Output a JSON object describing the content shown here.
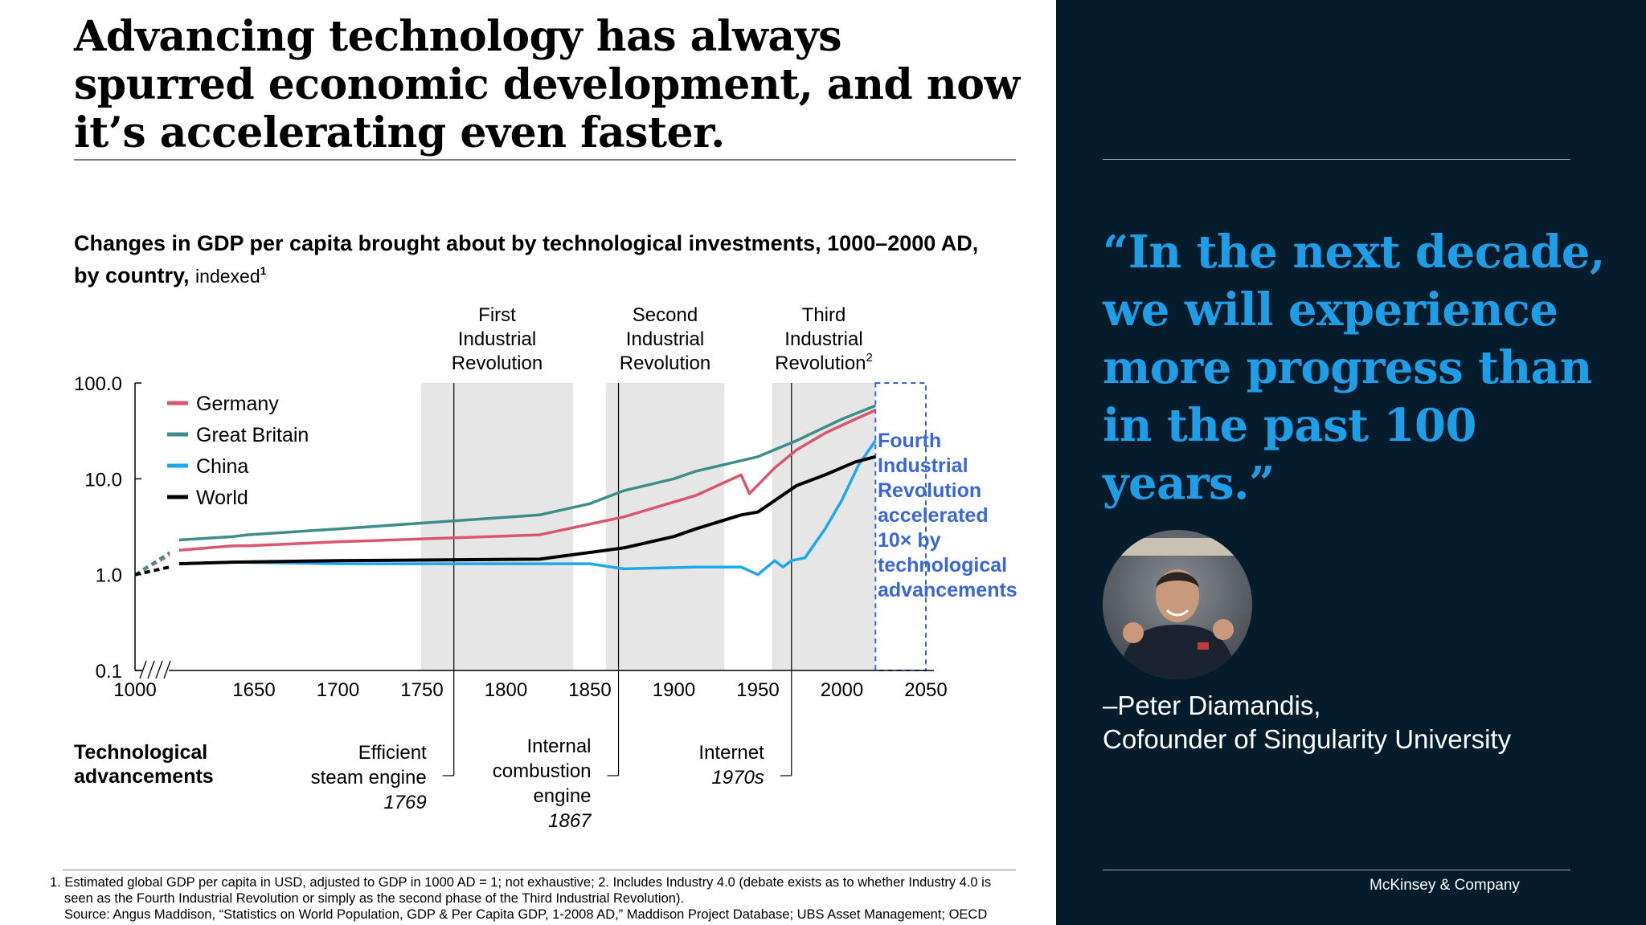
{
  "slide": {
    "headline": "Advancing technology has always spurred economic development, and now it’s accelerating even faster.",
    "chart_title": "Changes in GDP per capita brought about by technological investments, 1000–2000 AD, by country,",
    "chart_title_unit": "indexed",
    "chart_title_sup": "1"
  },
  "chart_data": {
    "type": "line",
    "title": "Changes in GDP per capita brought about by technological investments, 1000–2000 AD, by country, indexed",
    "y_scale": "log",
    "ylim": [
      0.1,
      100.0
    ],
    "y_ticks": [
      "100.0",
      "10.0",
      "1.0",
      "0.1"
    ],
    "x_ticks": [
      "1000",
      "1650",
      "1700",
      "1750",
      "1800",
      "1850",
      "1900",
      "1950",
      "2000",
      "2050"
    ],
    "x_tick_values": [
      1000,
      1650,
      1700,
      1750,
      1800,
      1850,
      1900,
      1950,
      2000,
      2050
    ],
    "axis_break": "between 1000 and 1650",
    "legend_position": "top-left",
    "series": [
      {
        "name": "Germany",
        "color": "#d9566f",
        "points": [
          [
            1000,
            1.0
          ],
          [
            1030,
            1.6
          ],
          [
            1100,
            1.8
          ],
          [
            1500,
            2.0
          ],
          [
            1600,
            2.0
          ],
          [
            1700,
            2.2
          ],
          [
            1820,
            2.6
          ],
          [
            1870,
            4.0
          ],
          [
            1913,
            6.7
          ],
          [
            1940,
            11.0
          ],
          [
            1945,
            7.0
          ],
          [
            1960,
            13.0
          ],
          [
            1973,
            20.0
          ],
          [
            1990,
            30.0
          ],
          [
            2008,
            42.0
          ],
          [
            2020,
            52.0
          ]
        ]
      },
      {
        "name": "Great Britain",
        "color": "#3f8d8b",
        "points": [
          [
            1000,
            1.0
          ],
          [
            1030,
            1.7
          ],
          [
            1100,
            2.3
          ],
          [
            1500,
            2.5
          ],
          [
            1600,
            2.6
          ],
          [
            1700,
            3.0
          ],
          [
            1820,
            4.2
          ],
          [
            1850,
            5.5
          ],
          [
            1870,
            7.5
          ],
          [
            1900,
            10.0
          ],
          [
            1913,
            12.0
          ],
          [
            1950,
            17.0
          ],
          [
            1973,
            25.0
          ],
          [
            2000,
            42.0
          ],
          [
            2020,
            58.0
          ]
        ]
      },
      {
        "name": "China",
        "color": "#1ea8ec",
        "points": [
          [
            1000,
            1.0
          ],
          [
            1030,
            1.2
          ],
          [
            1100,
            1.3
          ],
          [
            1500,
            1.35
          ],
          [
            1700,
            1.3
          ],
          [
            1820,
            1.3
          ],
          [
            1850,
            1.3
          ],
          [
            1870,
            1.15
          ],
          [
            1913,
            1.2
          ],
          [
            1940,
            1.2
          ],
          [
            1950,
            1.0
          ],
          [
            1960,
            1.4
          ],
          [
            1965,
            1.2
          ],
          [
            1970,
            1.4
          ],
          [
            1978,
            1.5
          ],
          [
            1990,
            3.0
          ],
          [
            2000,
            6.0
          ],
          [
            2010,
            14.0
          ],
          [
            2020,
            25.0
          ]
        ]
      },
      {
        "name": "World",
        "color": "#000000",
        "points": [
          [
            1000,
            1.0
          ],
          [
            1030,
            1.2
          ],
          [
            1100,
            1.3
          ],
          [
            1500,
            1.35
          ],
          [
            1700,
            1.4
          ],
          [
            1820,
            1.45
          ],
          [
            1870,
            1.9
          ],
          [
            1900,
            2.5
          ],
          [
            1913,
            3.0
          ],
          [
            1940,
            4.2
          ],
          [
            1950,
            4.5
          ],
          [
            1973,
            8.5
          ],
          [
            1990,
            11.0
          ],
          [
            2008,
            15.0
          ],
          [
            2020,
            17.0
          ]
        ]
      }
    ],
    "revolutions": [
      {
        "label_lines": [
          "First",
          "Industrial",
          "Revolution"
        ],
        "sup": "",
        "x_start": 1760,
        "x_end": 1840,
        "marker_year": 1769
      },
      {
        "label_lines": [
          "Second",
          "Industrial",
          "Revolution"
        ],
        "sup": "",
        "x_start": 1870,
        "x_end": 1930,
        "marker_year": 1867
      },
      {
        "label_lines": [
          "Third",
          "Industrial",
          "Revolution"
        ],
        "sup": "2",
        "x_start": 1969,
        "x_end": 2020,
        "marker_year": 1970
      }
    ],
    "fourth_box": {
      "x_start": 2020,
      "x_end": 2050,
      "text_lines": [
        "Fourth",
        "Industrial",
        "Revolution",
        "accelerated",
        "10× by",
        "technological",
        "advancements"
      ],
      "color": "#3a66d6"
    },
    "tech_heading_lines": [
      "Technological",
      "advancements"
    ],
    "technologies": [
      {
        "name_lines": [
          "Efficient",
          "steam engine"
        ],
        "year": "1769"
      },
      {
        "name_lines": [
          "Internal",
          "combustion",
          "engine"
        ],
        "year": "1867"
      },
      {
        "name_lines": [
          "Internet"
        ],
        "year": "1970s"
      }
    ]
  },
  "footnotes": [
    "1. Estimated global GDP per capita in USD, adjusted to GDP in 1000 AD = 1; not exhaustive; 2. Includes Industry 4.0 (debate exists as to whether Industry 4.0 is",
    "seen as the Fourth Industrial Revolution or simply as the second phase of the Third Industrial Revolution).",
    "Source: Angus Maddison, “Statistics on World Population, GDP & Per Capita GDP, 1-2008 AD,” Maddison Project Database; UBS Asset Management; OECD"
  ],
  "quote": {
    "text": "“In the next decade, we will experience more progress than in the past 100 years.”",
    "author": "–Peter Diamandis,",
    "role": "Cofounder of Singularity University",
    "accent_color": "#1f9ee8"
  },
  "brand": "McKinsey & Company"
}
